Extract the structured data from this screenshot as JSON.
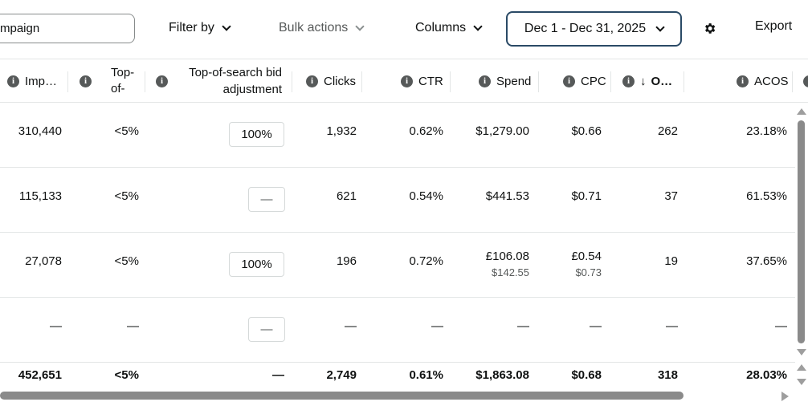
{
  "toolbar": {
    "search_value": "mpaign",
    "filter_label": "Filter by",
    "bulk_label": "Bulk actions",
    "columns_label": "Columns",
    "date_range": "Dec 1 - Dec 31, 2025",
    "export_label": "Export",
    "gear_icon": "gear-icon"
  },
  "columns": {
    "impressions": "Imp…",
    "top_of_search_1": "Top-",
    "top_of_search_2": "of-",
    "bid_adj_1": "Top-of-search bid",
    "bid_adj_2": "adjustment",
    "clicks": "Clicks",
    "ctr": "CTR",
    "spend": "Spend",
    "cpc": "CPC",
    "orders": "O…",
    "orders_sort_icon": "↓",
    "acos": "ACOS"
  },
  "rows": [
    {
      "impressions": "310,440",
      "top": "<5%",
      "bid": "100%",
      "clicks": "1,932",
      "ctr": "0.62%",
      "spend": "$1,279.00",
      "spend_sub": "",
      "cpc": "$0.66",
      "cpc_sub": "",
      "orders": "262",
      "acos": "23.18%"
    },
    {
      "impressions": "115,133",
      "top": "<5%",
      "bid": "—",
      "clicks": "621",
      "ctr": "0.54%",
      "spend": "$441.53",
      "spend_sub": "",
      "cpc": "$0.71",
      "cpc_sub": "",
      "orders": "37",
      "acos": "61.53%"
    },
    {
      "impressions": "27,078",
      "top": "<5%",
      "bid": "100%",
      "clicks": "196",
      "ctr": "0.72%",
      "spend": "£106.08",
      "spend_sub": "$142.55",
      "cpc": "£0.54",
      "cpc_sub": "$0.73",
      "orders": "19",
      "acos": "37.65%"
    },
    {
      "impressions": "—",
      "top": "—",
      "bid": "—",
      "clicks": "—",
      "ctr": "—",
      "spend": "—",
      "spend_sub": "",
      "cpc": "—",
      "cpc_sub": "",
      "orders": "—",
      "acos": "—"
    }
  ],
  "totals": {
    "impressions": "452,651",
    "top": "<5%",
    "bid": "—",
    "clicks": "2,749",
    "ctr": "0.61%",
    "spend": "$1,863.08",
    "cpc": "$0.68",
    "orders": "318",
    "acos": "28.03%"
  }
}
